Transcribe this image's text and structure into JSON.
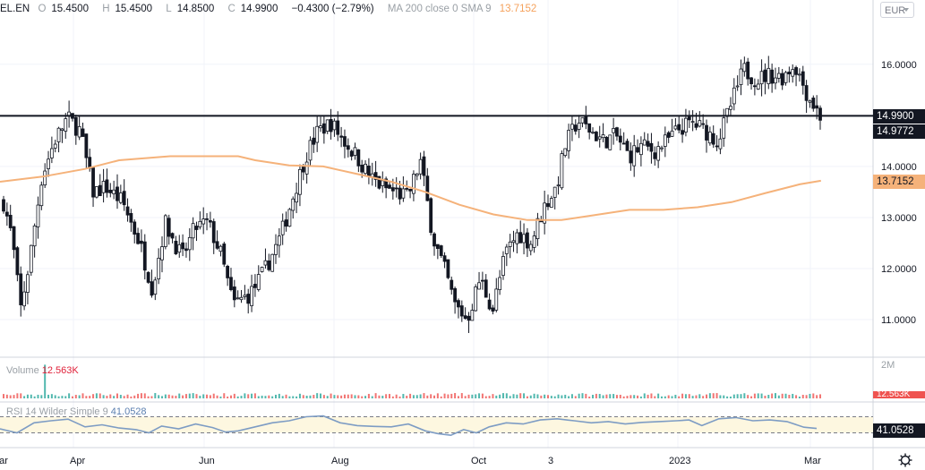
{
  "header": {
    "symbol": "EL.EN",
    "o_label": "O",
    "o_value": "15.4500",
    "h_label": "H",
    "h_value": "15.4500",
    "l_label": "L",
    "l_value": "14.8500",
    "c_label": "C",
    "c_value": "14.9900",
    "change": "−0.4300 (−2.79%)",
    "ma_label": "MA 200 close 0 SMA 9",
    "ma_value": "13.7152"
  },
  "currency_button": "EUR",
  "volume_pane": {
    "label": "Volume",
    "value": "12.563K",
    "scale_label": "2M",
    "last_badge": "12.563K"
  },
  "rsi_pane": {
    "label": "RSI 14 Wilder Simple 9",
    "value": "41.0528",
    "last_badge": "41.0528"
  },
  "price_badges": {
    "horizontal_line": "14.9900",
    "last_price": "14.9772",
    "ma": "13.7152"
  },
  "colors": {
    "up": "#26a69a",
    "down": "#ef5350",
    "candle": "#131722",
    "ma": "#f5b27a",
    "rsi": "#7d9cc4",
    "rsi_band": "#fdf7e0"
  },
  "settings_icon": "gear-icon",
  "chart_data": {
    "type": "candlestick",
    "price_axis": {
      "ticks": [
        11.0,
        12.0,
        13.0,
        14.0,
        15.0,
        16.0
      ],
      "tick_labels": [
        "11.0000",
        "12.0000",
        "13.0000",
        "14.0000",
        "15.0000",
        "16.0000"
      ],
      "ylim": [
        10.3,
        17.1
      ]
    },
    "x_ticks": [
      "Mar",
      "Apr",
      "Jun",
      "Aug",
      "Oct",
      "3",
      "2023",
      "Mar"
    ],
    "horizontal_line": 14.99,
    "ma_200": [
      [
        0,
        13.7
      ],
      [
        0.05,
        13.8
      ],
      [
        0.1,
        13.95
      ],
      [
        0.14,
        14.12
      ],
      [
        0.2,
        14.2
      ],
      [
        0.28,
        14.2
      ],
      [
        0.3,
        14.12
      ],
      [
        0.34,
        14.02
      ],
      [
        0.38,
        14.0
      ],
      [
        0.42,
        13.85
      ],
      [
        0.46,
        13.7
      ],
      [
        0.5,
        13.5
      ],
      [
        0.54,
        13.25
      ],
      [
        0.58,
        13.06
      ],
      [
        0.62,
        12.95
      ],
      [
        0.66,
        12.95
      ],
      [
        0.7,
        13.05
      ],
      [
        0.74,
        13.15
      ],
      [
        0.78,
        13.15
      ],
      [
        0.82,
        13.2
      ],
      [
        0.86,
        13.3
      ],
      [
        0.9,
        13.48
      ],
      [
        0.94,
        13.65
      ],
      [
        0.965,
        13.72
      ]
    ],
    "close_path": [
      [
        0.0,
        13.3
      ],
      [
        0.01,
        12.6
      ],
      [
        0.02,
        11.2
      ],
      [
        0.03,
        12.1
      ],
      [
        0.045,
        13.8
      ],
      [
        0.06,
        14.5
      ],
      [
        0.075,
        14.95
      ],
      [
        0.09,
        14.7
      ],
      [
        0.105,
        13.5
      ],
      [
        0.12,
        13.6
      ],
      [
        0.14,
        13.3
      ],
      [
        0.16,
        12.5
      ],
      [
        0.175,
        11.6
      ],
      [
        0.19,
        12.9
      ],
      [
        0.21,
        12.2
      ],
      [
        0.225,
        12.8
      ],
      [
        0.24,
        12.9
      ],
      [
        0.255,
        12.3
      ],
      [
        0.27,
        11.3
      ],
      [
        0.29,
        11.5
      ],
      [
        0.305,
        11.9
      ],
      [
        0.325,
        12.6
      ],
      [
        0.34,
        13.4
      ],
      [
        0.355,
        14.2
      ],
      [
        0.37,
        14.7
      ],
      [
        0.385,
        14.85
      ],
      [
        0.4,
        14.5
      ],
      [
        0.415,
        14.2
      ],
      [
        0.43,
        13.8
      ],
      [
        0.445,
        13.6
      ],
      [
        0.46,
        13.5
      ],
      [
        0.475,
        13.4
      ],
      [
        0.49,
        14.1
      ],
      [
        0.505,
        12.6
      ],
      [
        0.52,
        11.9
      ],
      [
        0.53,
        11.3
      ],
      [
        0.545,
        11.0
      ],
      [
        0.56,
        11.8
      ],
      [
        0.575,
        11.2
      ],
      [
        0.59,
        12.3
      ],
      [
        0.605,
        12.7
      ],
      [
        0.62,
        12.5
      ],
      [
        0.635,
        13.2
      ],
      [
        0.65,
        13.6
      ],
      [
        0.66,
        14.4
      ],
      [
        0.675,
        14.9
      ],
      [
        0.69,
        14.7
      ],
      [
        0.705,
        14.5
      ],
      [
        0.72,
        14.6
      ],
      [
        0.735,
        14.2
      ],
      [
        0.75,
        14.4
      ],
      [
        0.765,
        14.3
      ],
      [
        0.78,
        14.5
      ],
      [
        0.795,
        14.75
      ],
      [
        0.81,
        14.85
      ],
      [
        0.825,
        14.7
      ],
      [
        0.84,
        14.5
      ],
      [
        0.855,
        15.2
      ],
      [
        0.87,
        15.9
      ],
      [
        0.885,
        15.7
      ],
      [
        0.9,
        15.8
      ],
      [
        0.915,
        15.75
      ],
      [
        0.93,
        16.0
      ],
      [
        0.945,
        15.4
      ],
      [
        0.96,
        14.99
      ]
    ],
    "rsi_path": [
      [
        0,
        40
      ],
      [
        0.02,
        30
      ],
      [
        0.04,
        55
      ],
      [
        0.06,
        60
      ],
      [
        0.08,
        64
      ],
      [
        0.1,
        45
      ],
      [
        0.12,
        50
      ],
      [
        0.14,
        42
      ],
      [
        0.16,
        38
      ],
      [
        0.175,
        30
      ],
      [
        0.19,
        47
      ],
      [
        0.21,
        40
      ],
      [
        0.23,
        52
      ],
      [
        0.25,
        43
      ],
      [
        0.265,
        32
      ],
      [
        0.28,
        35
      ],
      [
        0.3,
        45
      ],
      [
        0.32,
        55
      ],
      [
        0.34,
        60
      ],
      [
        0.36,
        70
      ],
      [
        0.38,
        72
      ],
      [
        0.4,
        55
      ],
      [
        0.42,
        48
      ],
      [
        0.44,
        46
      ],
      [
        0.46,
        45
      ],
      [
        0.48,
        52
      ],
      [
        0.5,
        35
      ],
      [
        0.515,
        28
      ],
      [
        0.53,
        24
      ],
      [
        0.545,
        38
      ],
      [
        0.56,
        30
      ],
      [
        0.575,
        45
      ],
      [
        0.595,
        55
      ],
      [
        0.615,
        52
      ],
      [
        0.635,
        62
      ],
      [
        0.655,
        65
      ],
      [
        0.675,
        60
      ],
      [
        0.695,
        55
      ],
      [
        0.715,
        58
      ],
      [
        0.735,
        52
      ],
      [
        0.755,
        56
      ],
      [
        0.775,
        58
      ],
      [
        0.795,
        60
      ],
      [
        0.81,
        62
      ],
      [
        0.825,
        48
      ],
      [
        0.845,
        65
      ],
      [
        0.865,
        68
      ],
      [
        0.885,
        60
      ],
      [
        0.905,
        62
      ],
      [
        0.925,
        58
      ],
      [
        0.945,
        44
      ],
      [
        0.96,
        41
      ]
    ]
  }
}
